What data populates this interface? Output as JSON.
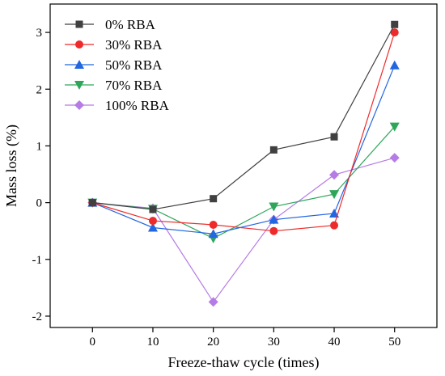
{
  "chart_data": {
    "type": "line",
    "title": "",
    "xlabel": "Freeze-thaw cycle (times)",
    "ylabel": "Mass loss (%)",
    "x": [
      0,
      10,
      20,
      30,
      40,
      50
    ],
    "xlim": [
      -7,
      57
    ],
    "ylim": [
      -2.2,
      3.5
    ],
    "xticks": [
      0,
      10,
      20,
      30,
      40,
      50
    ],
    "yticks": [
      -2,
      -1,
      0,
      1,
      2,
      3
    ],
    "xtick_labels": [
      "0",
      "10",
      "20",
      "30",
      "40",
      "50"
    ],
    "ytick_labels": [
      "-2",
      "-1",
      "0",
      "1",
      "2",
      "3"
    ],
    "grid": false,
    "legend_position": "top-left",
    "series": [
      {
        "name": "0% RBA",
        "color": "#404040",
        "marker": "square",
        "values": [
          0.0,
          -0.12,
          0.07,
          0.93,
          1.16,
          3.14
        ]
      },
      {
        "name": "30% RBA",
        "color": "#ee2b2b",
        "marker": "circle",
        "values": [
          0.0,
          -0.32,
          -0.39,
          -0.5,
          -0.4,
          3.0
        ]
      },
      {
        "name": "50% RBA",
        "color": "#2266e0",
        "marker": "triangle-up",
        "values": [
          0.0,
          -0.44,
          -0.55,
          -0.3,
          -0.19,
          2.42
        ]
      },
      {
        "name": "70% RBA",
        "color": "#2ea65a",
        "marker": "triangle-down",
        "values": [
          0.0,
          -0.11,
          -0.63,
          -0.07,
          0.15,
          1.34
        ]
      },
      {
        "name": "100% RBA",
        "color": "#b57ce6",
        "marker": "diamond",
        "values": [
          0.0,
          -0.1,
          -1.75,
          -0.3,
          0.49,
          0.79
        ]
      }
    ]
  }
}
